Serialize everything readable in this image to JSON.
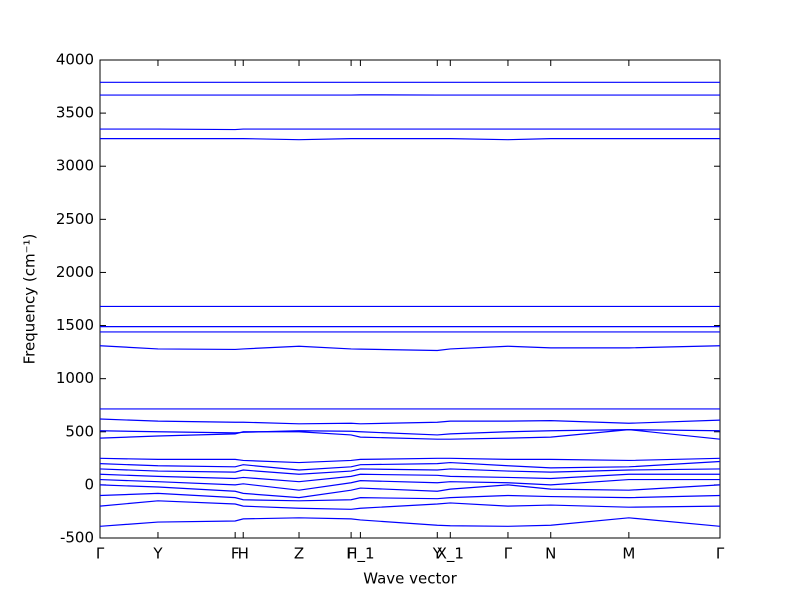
{
  "chart_data": {
    "type": "line",
    "xlabel": "Wave vector",
    "ylabel": "Frequency (cm⁻¹)",
    "color": "#0000ff",
    "xlim": [
      0,
      1
    ],
    "ylim": [
      -500,
      4000
    ],
    "yticks": [
      -500,
      0,
      500,
      1000,
      1500,
      2000,
      2500,
      3000,
      3500,
      4000
    ],
    "xticks": [
      {
        "value": 0,
        "label": "Γ"
      },
      {
        "value": 0.0935,
        "label": "Y"
      },
      {
        "value": 0.218,
        "label": "F"
      },
      {
        "value": 0.231,
        "label": "H"
      },
      {
        "value": 0.321,
        "label": "Z"
      },
      {
        "value": 0.405,
        "label": "F"
      },
      {
        "value": 0.42,
        "label": "H_1"
      },
      {
        "value": 0.544,
        "label": "Y"
      },
      {
        "value": 0.565,
        "label": "X_1"
      },
      {
        "value": 0.658,
        "label": "Γ"
      },
      {
        "value": 0.727,
        "label": "N"
      },
      {
        "value": 0.853,
        "label": "M"
      },
      {
        "value": 1,
        "label": "Γ"
      }
    ],
    "x": [
      0,
      0.0935,
      0.218,
      0.231,
      0.321,
      0.405,
      0.42,
      0.544,
      0.565,
      0.658,
      0.727,
      0.853,
      1
    ],
    "series": [
      {
        "values": [
          3790,
          3790,
          3790,
          3790,
          3790,
          3790,
          3790,
          3790,
          3790,
          3790,
          3790,
          3790,
          3790
        ]
      },
      {
        "values": [
          3670,
          3670,
          3670,
          3670,
          3670,
          3670,
          3672,
          3670,
          3670,
          3670,
          3670,
          3670,
          3670
        ]
      },
      {
        "values": [
          3350,
          3350,
          3345,
          3350,
          3350,
          3350,
          3350,
          3350,
          3350,
          3350,
          3350,
          3350,
          3350
        ]
      },
      {
        "values": [
          3260,
          3260,
          3260,
          3260,
          3250,
          3260,
          3260,
          3260,
          3260,
          3250,
          3260,
          3260,
          3260
        ]
      },
      {
        "values": [
          1680,
          1680,
          1680,
          1680,
          1680,
          1680,
          1680,
          1680,
          1680,
          1680,
          1680,
          1680,
          1680
        ]
      },
      {
        "values": [
          1490,
          1490,
          1490,
          1490,
          1490,
          1490,
          1490,
          1490,
          1490,
          1490,
          1490,
          1490,
          1490
        ]
      },
      {
        "values": [
          1440,
          1440,
          1440,
          1440,
          1440,
          1440,
          1440,
          1440,
          1440,
          1440,
          1440,
          1440,
          1440
        ]
      },
      {
        "values": [
          1310,
          1280,
          1275,
          1280,
          1305,
          1280,
          1278,
          1265,
          1280,
          1305,
          1290,
          1290,
          1310
        ]
      },
      {
        "values": [
          715,
          715,
          715,
          715,
          715,
          715,
          715,
          715,
          715,
          715,
          715,
          715,
          715
        ]
      },
      {
        "values": [
          620,
          600,
          590,
          590,
          575,
          580,
          575,
          590,
          600,
          600,
          605,
          580,
          610
        ]
      },
      {
        "values": [
          510,
          500,
          490,
          495,
          510,
          505,
          500,
          470,
          480,
          500,
          510,
          520,
          510
        ]
      },
      {
        "values": [
          440,
          460,
          480,
          500,
          500,
          470,
          450,
          430,
          430,
          440,
          450,
          520,
          430
        ]
      },
      {
        "values": [
          250,
          240,
          240,
          230,
          210,
          230,
          240,
          250,
          250,
          240,
          240,
          230,
          250
        ]
      },
      {
        "values": [
          200,
          180,
          170,
          190,
          140,
          170,
          190,
          200,
          210,
          180,
          160,
          170,
          220
        ]
      },
      {
        "values": [
          150,
          130,
          120,
          140,
          100,
          130,
          150,
          140,
          150,
          130,
          120,
          140,
          150
        ]
      },
      {
        "values": [
          100,
          80,
          60,
          70,
          30,
          80,
          100,
          90,
          80,
          70,
          60,
          100,
          100
        ]
      },
      {
        "values": [
          50,
          30,
          0,
          10,
          -50,
          20,
          40,
          20,
          30,
          20,
          0,
          50,
          50
        ]
      },
      {
        "values": [
          0,
          -20,
          -60,
          -80,
          -120,
          -50,
          -30,
          -60,
          -40,
          0,
          -40,
          -50,
          0
        ]
      },
      {
        "values": [
          -100,
          -80,
          -120,
          -140,
          -150,
          -140,
          -120,
          -130,
          -120,
          -100,
          -110,
          -120,
          -100
        ]
      },
      {
        "values": [
          -200,
          -150,
          -180,
          -200,
          -220,
          -230,
          -220,
          -180,
          -170,
          -200,
          -190,
          -210,
          -200
        ]
      },
      {
        "values": [
          -390,
          -350,
          -340,
          -320,
          -310,
          -320,
          -330,
          -380,
          -385,
          -390,
          -380,
          -310,
          -390
        ]
      }
    ]
  }
}
